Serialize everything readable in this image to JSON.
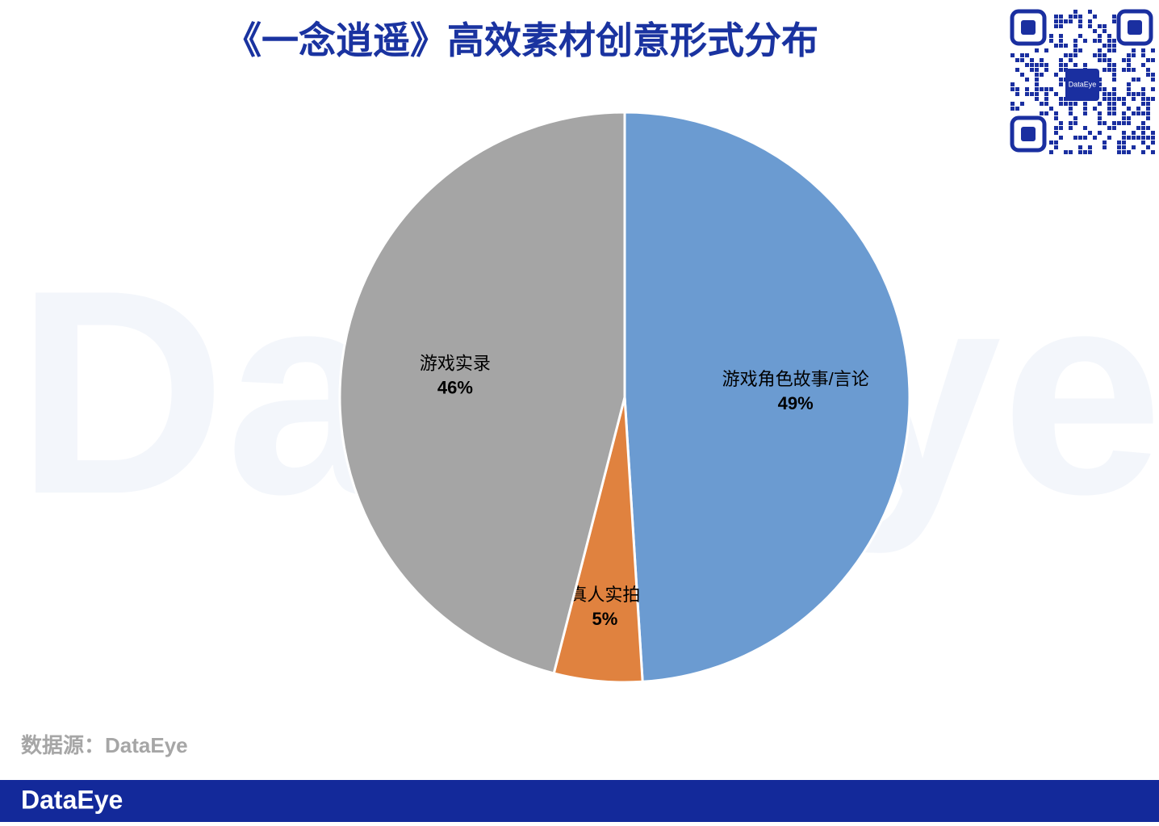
{
  "chart_data": {
    "type": "pie",
    "title": "《一念逍遥》高效素材创意形式分布",
    "categories": [
      "游戏角色故事/言论",
      "真人实拍",
      "游戏实录"
    ],
    "values": [
      49,
      5,
      46
    ],
    "value_labels": [
      "49%",
      "5%",
      "46%"
    ],
    "colors": [
      "#6b9bd1",
      "#e0823f",
      "#a5a5a5"
    ],
    "source": "数据源：DataEye",
    "watermark": "DataEye",
    "footer_logo": "DataEye",
    "qr_badge": "DataEye"
  }
}
